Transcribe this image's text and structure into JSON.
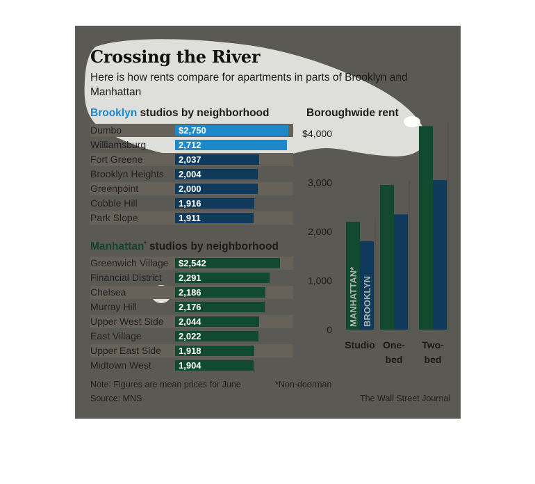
{
  "title": "Crossing the River",
  "subtitle": "Here is how rents compare for apartments in parts of Brooklyn and Manhattan",
  "brooklyn_heading": {
    "city": "Brooklyn",
    "rest": " studios by neighborhood"
  },
  "manhattan_heading": {
    "city": "Manhattan",
    "star": "*",
    "rest": " studios by neighborhood"
  },
  "boroughwide_heading": "Boroughwide rent",
  "footer": {
    "note": "Note: Figures are mean prices for June",
    "non_doorman": "*Non-doorman",
    "source": "Source: MNS",
    "credit": "The Wall Street Journal"
  },
  "colors": {
    "brooklyn_bar": "#0f3a5c",
    "brooklyn_highlight": "#1e88c8",
    "manhattan_bar": "#124a2f",
    "background": "#5b5953",
    "band": "#66625a",
    "highlight_overlay": "#f6f6f2"
  },
  "chart_data": [
    {
      "type": "bar",
      "orientation": "horizontal",
      "title": "Brooklyn studios by neighborhood",
      "categories": [
        "Dumbo",
        "Williamsburg",
        "Fort Greene",
        "Brooklyn Heights",
        "Greenpoint",
        "Cobble Hill",
        "Park Slope"
      ],
      "values": [
        2750,
        2712,
        2037,
        2004,
        2000,
        1916,
        1911
      ],
      "value_labels": [
        "$2,750",
        "2,712",
        "2,037",
        "2,004",
        "2,000",
        "1,916",
        "1,911"
      ]
    },
    {
      "type": "bar",
      "orientation": "horizontal",
      "title": "Manhattan* studios by neighborhood",
      "categories": [
        "Greenwich Village",
        "Financial District",
        "Chelsea",
        "Murray Hill",
        "Upper West Side",
        "East Village",
        "Upper East Side",
        "Midtown West"
      ],
      "values": [
        2542,
        2291,
        2186,
        2176,
        2044,
        2022,
        1918,
        1904
      ],
      "value_labels": [
        "$2,542",
        "2,291",
        "2,186",
        "2,176",
        "2,044",
        "2,022",
        "1,918",
        "1,904"
      ]
    },
    {
      "type": "bar",
      "title": "Boroughwide rent",
      "categories": [
        "Studio",
        "One-bed",
        "Two-bed"
      ],
      "category_lines": [
        [
          "Studio"
        ],
        [
          "One-",
          "bed"
        ],
        [
          "Two-",
          "bed"
        ]
      ],
      "series": [
        {
          "name": "MANHATTAN*",
          "values": [
            2200,
            2950,
            4150
          ]
        },
        {
          "name": "BROOKLYN",
          "values": [
            1800,
            2350,
            3050
          ]
        }
      ],
      "ylim": [
        0,
        4000
      ],
      "yticks": [
        0,
        1000,
        2000,
        3000,
        4000
      ],
      "ytick_labels": [
        "0",
        "1,000",
        "2,000",
        "3,000",
        "$4,000"
      ],
      "grid": false
    }
  ]
}
